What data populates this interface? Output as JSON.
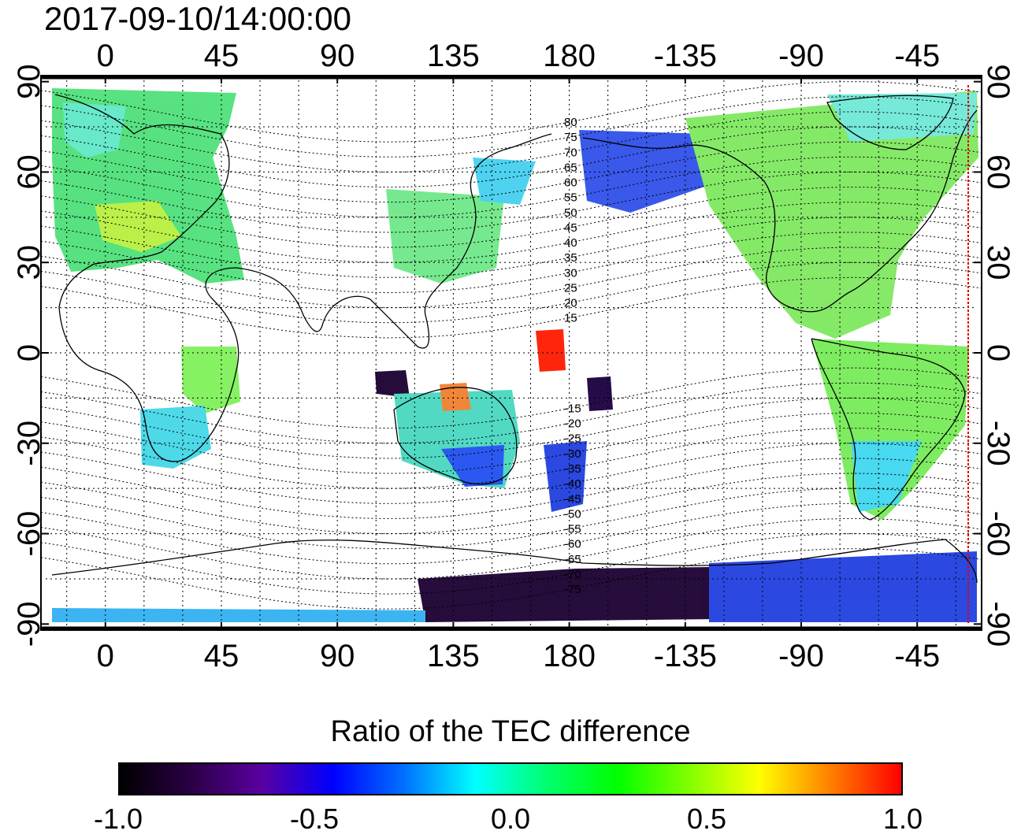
{
  "timestamp": "2017-09-10/14:00:00",
  "map": {
    "longitude_ticks": [
      "0",
      "45",
      "90",
      "135",
      "180",
      "-135",
      "-90",
      "-45"
    ],
    "longitude_values": [
      0,
      45,
      90,
      135,
      180,
      225,
      270,
      315
    ],
    "latitude_ticks": [
      "90",
      "60",
      "30",
      "0",
      "-30",
      "-60",
      "-90"
    ],
    "latitude_values": [
      90,
      60,
      30,
      0,
      -30,
      -60,
      -90
    ],
    "lon_range": [
      -25,
      340
    ],
    "lat_range": [
      -92,
      92
    ],
    "magnetic_latitude_labels": [
      "80",
      "75",
      "70",
      "65",
      "60",
      "55",
      "50",
      "45",
      "40",
      "35",
      "30",
      "25",
      "20",
      "15",
      "-15",
      "-20",
      "-25",
      "-30",
      "-35",
      "-40",
      "-45",
      "-50",
      "-55",
      "-60",
      "-65",
      "-70",
      "-75"
    ],
    "grid": true
  },
  "colorbar": {
    "title": "Ratio of the TEC difference",
    "tick_labels": [
      "-1.0",
      "-0.5",
      "0.0",
      "0.5",
      "1.0"
    ],
    "tick_values": [
      -1.0,
      -0.5,
      0.0,
      0.5,
      1.0
    ],
    "range": [
      -1.0,
      1.0
    ],
    "colors": [
      "#000000",
      "#2a0045",
      "#5a00a0",
      "#0000ff",
      "#0070ff",
      "#00ffff",
      "#00ff70",
      "#00ff00",
      "#80ff00",
      "#ffff00",
      "#ff8000",
      "#ff0000"
    ]
  }
}
